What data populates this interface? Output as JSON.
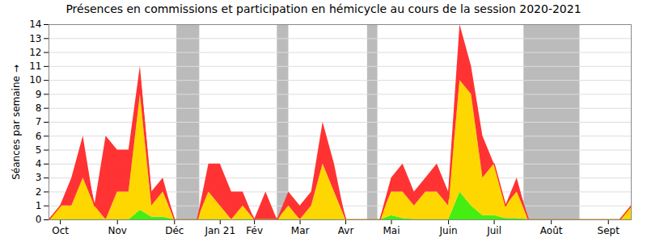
{
  "chart_data": {
    "type": "area",
    "title": "Présences en commissions et participation en hémicycle au cours de la session 2020-2021",
    "y_label": "Séances par semaine",
    "stacked": true,
    "grid": true,
    "categories": [
      null,
      "Oct",
      null,
      null,
      null,
      null,
      "Nov",
      null,
      null,
      null,
      null,
      "Déc",
      null,
      null,
      null,
      "Jan 21",
      null,
      null,
      "Fév",
      null,
      null,
      null,
      "Mar",
      null,
      null,
      null,
      "Avr",
      null,
      null,
      null,
      "Mai",
      null,
      null,
      null,
      null,
      "Juin",
      null,
      null,
      null,
      "Juil",
      null,
      null,
      null,
      null,
      "Août",
      null,
      null,
      null,
      null,
      "Sept",
      null,
      null
    ],
    "xlim": [
      0,
      51
    ],
    "ylim": [
      0,
      14
    ],
    "yticks": [
      0,
      1,
      2,
      3,
      4,
      5,
      6,
      7,
      8,
      9,
      10,
      11,
      12,
      13,
      14
    ],
    "vacation_weeks": [
      [
        11.2,
        13.2
      ],
      [
        20,
        21
      ],
      [
        27.9,
        28.8
      ],
      [
        41.6,
        46.5
      ]
    ],
    "vacation_color": "#bbbbbb",
    "series": [
      {
        "color": "#44ee11",
        "values": [
          0,
          0,
          0,
          0,
          0,
          0,
          0,
          0,
          0.7,
          0.2,
          0.2,
          0,
          0,
          0,
          0,
          0,
          0,
          0,
          0,
          0,
          0,
          0,
          0,
          0,
          0,
          0,
          0,
          0,
          0,
          0,
          0.3,
          0.1,
          0,
          0,
          0,
          0,
          2,
          1,
          0.3,
          0.3,
          0.1,
          0.1,
          0,
          0,
          0,
          0,
          0,
          0,
          0,
          0,
          0,
          0
        ]
      },
      {
        "color": "#ffd700",
        "values": [
          0,
          1,
          1,
          3,
          1,
          0,
          2,
          2,
          8.3,
          0.8,
          1.8,
          0,
          0,
          0,
          2,
          1,
          0,
          1,
          0,
          0,
          0,
          1,
          0,
          1,
          4,
          2,
          0,
          0,
          0,
          0,
          1.7,
          1.9,
          1,
          2,
          2,
          1,
          8,
          8,
          2.7,
          3.7,
          0.9,
          1.9,
          0,
          0,
          0,
          0,
          0,
          0,
          0,
          0,
          0,
          1
        ]
      },
      {
        "color": "#ff3333",
        "values": [
          0,
          0,
          2,
          3,
          0,
          6,
          3,
          3,
          2,
          1,
          1,
          0,
          0,
          0,
          2,
          3,
          2,
          1,
          0,
          2,
          0,
          1,
          1,
          1,
          3,
          2,
          0,
          0,
          0,
          0,
          1,
          2,
          1,
          1,
          2,
          1,
          4,
          2,
          3,
          0,
          0,
          1,
          0,
          0,
          0,
          0,
          0,
          0,
          0,
          0,
          0,
          0
        ]
      }
    ]
  }
}
